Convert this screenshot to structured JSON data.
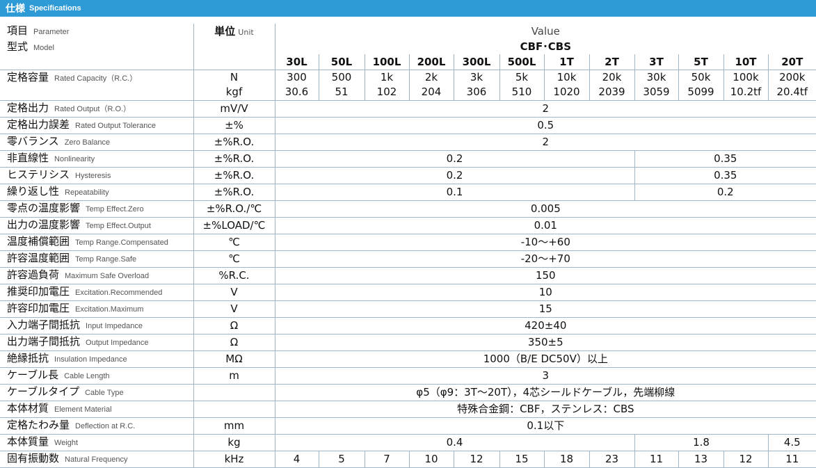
{
  "header": {
    "title_jp": "仕様",
    "title_en": "Specifications"
  },
  "head": {
    "param_jp": "項目",
    "param_en": "Parameter",
    "unit_jp": "単位",
    "unit_en": "Unit",
    "value_label": "Value",
    "model_jp": "型式",
    "model_en": "Model",
    "model_name": "CBF･CBS"
  },
  "capacities": [
    "30L",
    "50L",
    "100L",
    "200L",
    "300L",
    "500L",
    "1T",
    "2T",
    "3T",
    "5T",
    "10T",
    "20T"
  ],
  "rated_capacity": {
    "label_jp": "定格容量",
    "label_en": "Rated Capacity（R.C.）",
    "unit_n": "N",
    "n_values": [
      "300",
      "500",
      "1k",
      "2k",
      "3k",
      "5k",
      "10k",
      "20k",
      "30k",
      "50k",
      "100k",
      "200k"
    ],
    "unit_kgf": "kgf",
    "kgf_values": [
      "30.6",
      "51",
      "102",
      "204",
      "306",
      "510",
      "1020",
      "2039",
      "3059",
      "5099",
      "10.2tf",
      "20.4tf"
    ]
  },
  "rows": [
    {
      "jp": "定格出力",
      "en": "Rated Output（R.O.）",
      "unit": "mV/V",
      "values": [
        "2"
      ],
      "spans": [
        12
      ]
    },
    {
      "jp": "定格出力誤差",
      "en": "Rated Output Tolerance",
      "unit": "±%",
      "values": [
        "0.5"
      ],
      "spans": [
        12
      ]
    },
    {
      "jp": "零バランス",
      "en": "Zero Balance",
      "unit": "±%R.O.",
      "values": [
        "2"
      ],
      "spans": [
        12
      ]
    },
    {
      "jp": "非直線性",
      "en": "Nonlinearity",
      "unit": "±%R.O.",
      "values": [
        "0.2",
        "0.35"
      ],
      "spans": [
        8,
        4
      ]
    },
    {
      "jp": "ヒステリシス",
      "en": "Hysteresis",
      "unit": "±%R.O.",
      "values": [
        "0.2",
        "0.35"
      ],
      "spans": [
        8,
        4
      ]
    },
    {
      "jp": "繰り返し性",
      "en": "Repeatability",
      "unit": "±%R.O.",
      "values": [
        "0.1",
        "0.2"
      ],
      "spans": [
        8,
        4
      ]
    },
    {
      "jp": "零点の温度影響",
      "en": "Temp Effect.Zero",
      "unit": "±%R.O./℃",
      "values": [
        "0.005"
      ],
      "spans": [
        12
      ]
    },
    {
      "jp": "出力の温度影響",
      "en": "Temp Effect.Output",
      "unit": "±%LOAD/℃",
      "values": [
        "0.01"
      ],
      "spans": [
        12
      ]
    },
    {
      "jp": "温度補償範囲",
      "en": "Temp Range.Compensated",
      "unit": "℃",
      "values": [
        "-10～+60"
      ],
      "spans": [
        12
      ]
    },
    {
      "jp": "許容温度範囲",
      "en": "Temp Range.Safe",
      "unit": "℃",
      "values": [
        "-20～+70"
      ],
      "spans": [
        12
      ]
    },
    {
      "jp": "許容過負荷",
      "en": "Maximum Safe Overload",
      "unit": "%R.C.",
      "values": [
        "150"
      ],
      "spans": [
        12
      ]
    },
    {
      "jp": "推奨印加電圧",
      "en": "Excitation.Recommended",
      "unit": "V",
      "values": [
        "10"
      ],
      "spans": [
        12
      ]
    },
    {
      "jp": "許容印加電圧",
      "en": "Excitation.Maximum",
      "unit": "V",
      "values": [
        "15"
      ],
      "spans": [
        12
      ]
    },
    {
      "jp": "入力端子間抵抗",
      "en": "Input Impedance",
      "unit": "Ω",
      "values": [
        "420±40"
      ],
      "spans": [
        12
      ]
    },
    {
      "jp": "出力端子間抵抗",
      "en": "Output Impedance",
      "unit": "Ω",
      "values": [
        "350±5"
      ],
      "spans": [
        12
      ]
    },
    {
      "jp": "絶縁抵抗",
      "en": "Insulation Impedance",
      "unit": "MΩ",
      "values": [
        "1000（B/E DC50V）以上"
      ],
      "spans": [
        12
      ]
    },
    {
      "jp": "ケーブル長",
      "en": "Cable Length",
      "unit": "m",
      "values": [
        "3"
      ],
      "spans": [
        12
      ]
    },
    {
      "jp": "ケーブルタイプ",
      "en": "Cable Type",
      "unit": "",
      "values": [
        "φ5（φ9：3T～20T），4芯シールドケーブル，先端柳線"
      ],
      "spans": [
        12
      ]
    },
    {
      "jp": "本体材質",
      "en": "Element Material",
      "unit": "",
      "values": [
        "特殊合金鋼：CBF，ステンレス：CBS"
      ],
      "spans": [
        12
      ]
    },
    {
      "jp": "定格たわみ量",
      "en": "Deflection at R.C.",
      "unit": "mm",
      "values": [
        "0.1以下"
      ],
      "spans": [
        12
      ]
    },
    {
      "jp": "本体質量",
      "en": "Weight",
      "unit": "kg",
      "values": [
        "0.4",
        "1.8",
        "4.5"
      ],
      "spans": [
        8,
        3,
        1
      ]
    },
    {
      "jp": "固有振動数",
      "en": "Natural Frequency",
      "unit": "kHz",
      "values": [
        "4",
        "5",
        "7",
        "10",
        "12",
        "15",
        "18",
        "23",
        "11",
        "13",
        "12",
        "11"
      ],
      "spans": [
        1,
        1,
        1,
        1,
        1,
        1,
        1,
        1,
        1,
        1,
        1,
        1
      ]
    }
  ]
}
